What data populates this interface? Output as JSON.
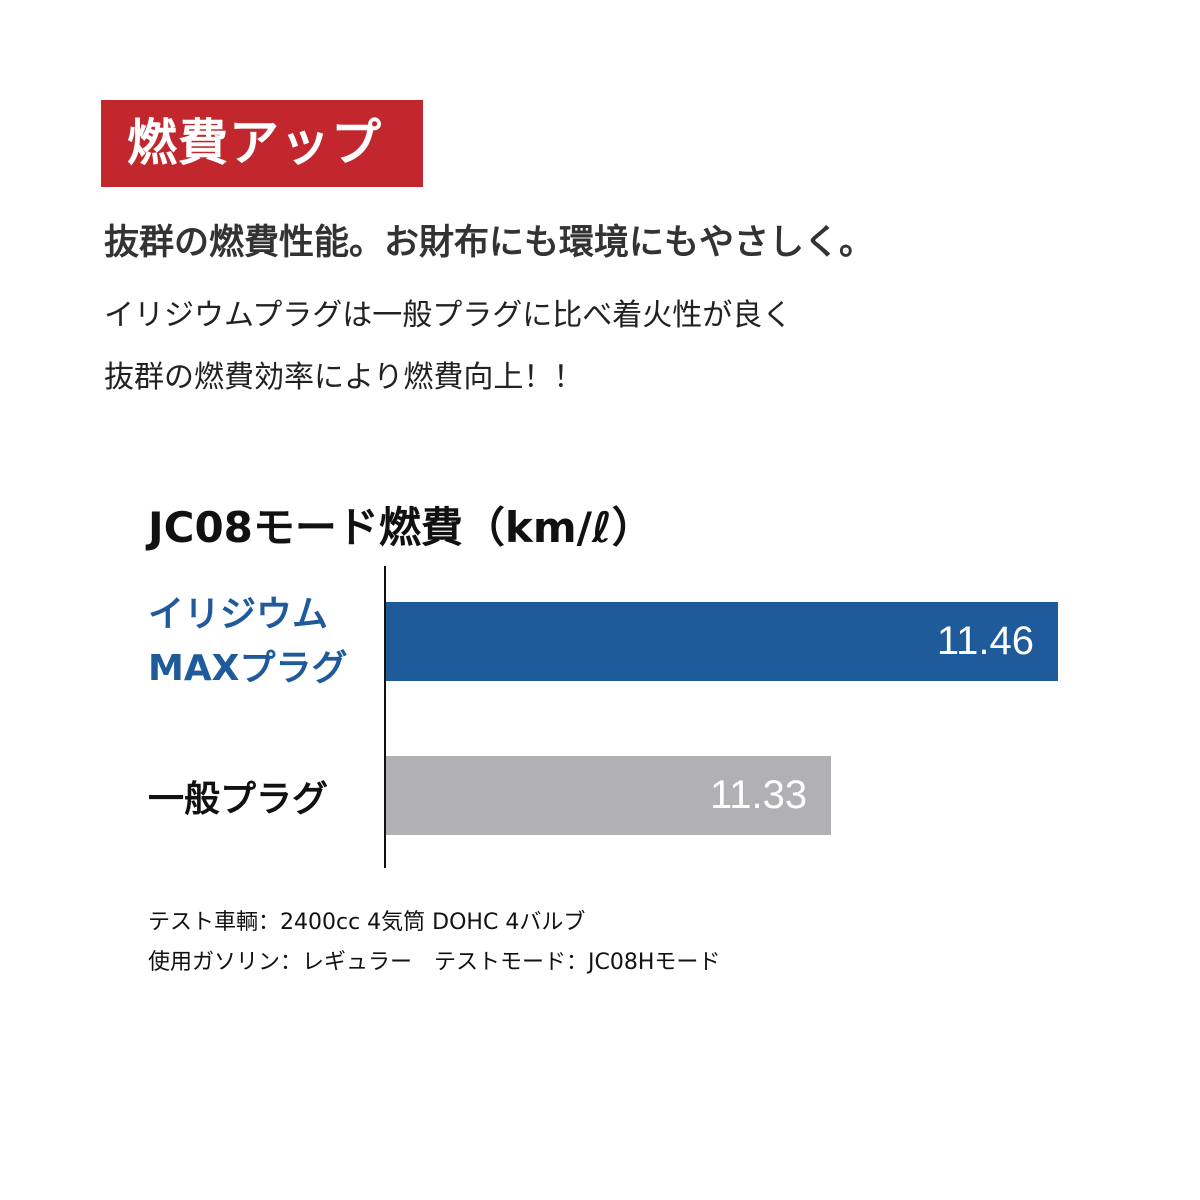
{
  "badge": {
    "label": "燃費アップ",
    "color": "#c1272d"
  },
  "headline": "抜群の燃費性能。お財布にも環境にもやさしく。",
  "body": [
    "イリジウムプラグは一般プラグに比べ着火性が良く",
    "抜群の燃費効率により燃費向上！！"
  ],
  "chart_data": {
    "type": "bar",
    "orientation": "horizontal",
    "title": "JC08モード燃費（km/ℓ）",
    "categories": [
      "イリジウム\nMAXプラグ",
      "一般プラグ"
    ],
    "category_lines": [
      [
        "イリジウム",
        "MAXプラグ"
      ],
      [
        "一般プラグ"
      ]
    ],
    "values": [
      11.46,
      11.33
    ],
    "value_labels": [
      "11.46",
      "11.33"
    ],
    "colors": [
      "#1f5a9a",
      "#b1b1b3"
    ],
    "category_label_colors": [
      "#1f5a9a",
      "#111111"
    ],
    "xlim": [
      11.075,
      11.46
    ],
    "grid": false,
    "axis_ticks": false
  },
  "notes": [
    "テスト車輌：2400cc 4気筒 DOHC 4バルブ",
    "使用ガソリン：レギュラー　テストモード：JC08Hモード"
  ]
}
